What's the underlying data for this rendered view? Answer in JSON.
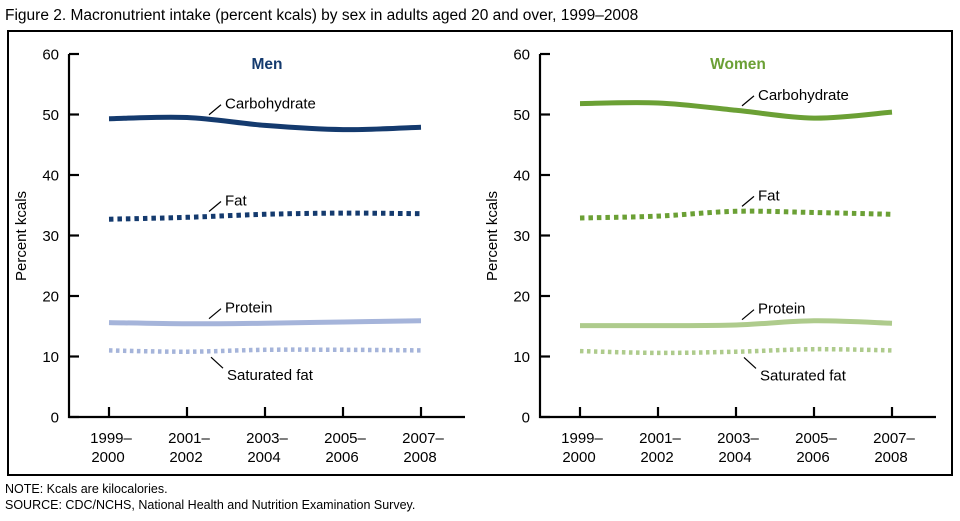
{
  "figure_title": "Figure 2. Macronutrient intake (percent kcals) by sex in adults aged 20 and over, 1999–2008",
  "notes": {
    "note": "NOTE: Kcals are kilocalories.",
    "source": "SOURCE: CDC/NCHS, National Health and Nutrition Examination Survey."
  },
  "chart_data": [
    {
      "type": "line",
      "panel": "men",
      "title": "Men",
      "title_color": "#143a6e",
      "ylabel": "Percent kcals",
      "ylim": [
        0,
        60
      ],
      "yticks": [
        0,
        10,
        20,
        30,
        40,
        50,
        60
      ],
      "categories": [
        [
          "1999–",
          "2000"
        ],
        [
          "2001–",
          "2002"
        ],
        [
          "2003–",
          "2004"
        ],
        [
          "2005–",
          "2006"
        ],
        [
          "2007–",
          "2008"
        ]
      ],
      "series": [
        {
          "name": "Carbohydrate",
          "color": "#143a6e",
          "style": "solid",
          "label_side": "above",
          "values": [
            49.3,
            49.5,
            48.2,
            47.5,
            47.9
          ]
        },
        {
          "name": "Fat",
          "color": "#143a6e",
          "style": "dashed",
          "label_side": "above",
          "values": [
            32.7,
            33.0,
            33.5,
            33.7,
            33.6
          ]
        },
        {
          "name": "Protein",
          "color": "#a5b4da",
          "style": "solid",
          "label_side": "above",
          "values": [
            15.6,
            15.4,
            15.5,
            15.7,
            15.9
          ]
        },
        {
          "name": "Saturated fat",
          "color": "#a5b4da",
          "style": "dotted",
          "label_side": "below",
          "values": [
            11.0,
            10.8,
            11.1,
            11.1,
            11.0
          ]
        }
      ]
    },
    {
      "type": "line",
      "panel": "women",
      "title": "Women",
      "title_color": "#6ba035",
      "ylabel": "Percent kcals",
      "ylim": [
        0,
        60
      ],
      "yticks": [
        0,
        10,
        20,
        30,
        40,
        50,
        60
      ],
      "categories": [
        [
          "1999–",
          "2000"
        ],
        [
          "2001–",
          "2002"
        ],
        [
          "2003–",
          "2004"
        ],
        [
          "2005–",
          "2006"
        ],
        [
          "2007–",
          "2008"
        ]
      ],
      "series": [
        {
          "name": "Carbohydrate",
          "color": "#6ba035",
          "style": "solid",
          "label_side": "above",
          "values": [
            51.8,
            51.9,
            50.7,
            49.4,
            50.4
          ]
        },
        {
          "name": "Fat",
          "color": "#6ba035",
          "style": "dashed",
          "label_side": "above",
          "values": [
            32.9,
            33.2,
            34.0,
            33.8,
            33.5
          ]
        },
        {
          "name": "Protein",
          "color": "#aecb8c",
          "style": "solid",
          "label_side": "above",
          "values": [
            15.1,
            15.1,
            15.2,
            15.9,
            15.5
          ]
        },
        {
          "name": "Saturated fat",
          "color": "#aecb8c",
          "style": "dotted",
          "label_side": "below",
          "values": [
            10.9,
            10.6,
            10.8,
            11.2,
            11.0
          ]
        }
      ]
    }
  ]
}
